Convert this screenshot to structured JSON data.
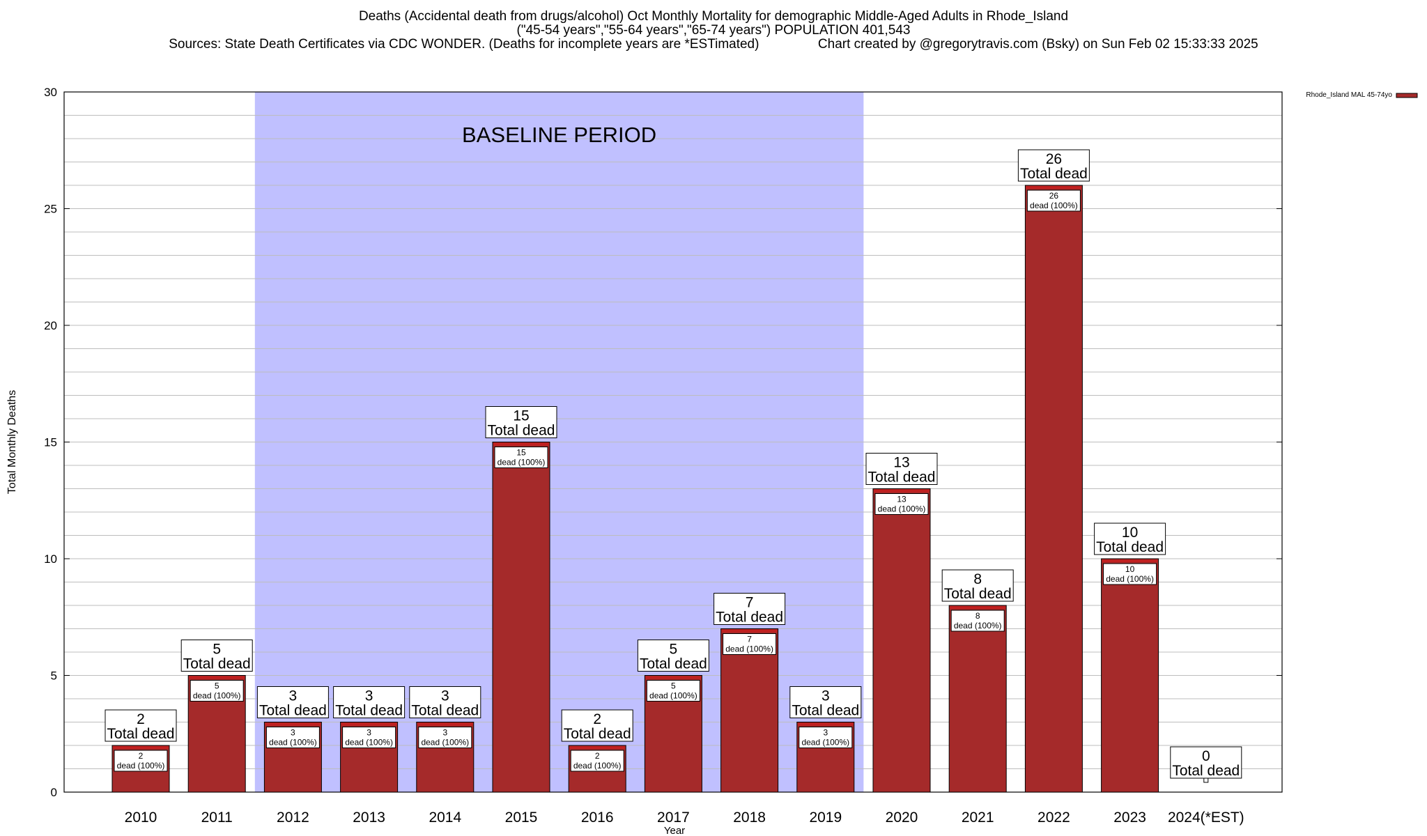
{
  "titles": {
    "line1": "Deaths (Accidental death from drugs/alcohol) Oct Monthly Mortality for demographic Middle-Aged Adults in Rhode_Island",
    "line2": "(\"45-54 years\",\"55-64 years\",\"65-74 years\") POPULATION 401,543",
    "line3": "Sources: State Death Certificates via CDC WONDER. (Deaths for incomplete years are *ESTimated)                Chart created by @gregorytravis.com (Bsky) on Sun Feb 02 15:33:33 2025"
  },
  "chart_data": {
    "type": "bar",
    "title": "Deaths (Accidental death from drugs/alcohol) Oct Monthly Mortality for demographic Middle-Aged Adults in Rhode_Island",
    "xlabel": "Year",
    "ylabel": "Total Monthly Deaths",
    "ylim": [
      0,
      30
    ],
    "yticks": [
      0,
      5,
      10,
      15,
      20,
      25,
      30
    ],
    "grid": true,
    "legend_position": "top-right",
    "colors": {
      "bar": "#a52a2a",
      "baseline_shade": "#c0c0ff",
      "bar_top": "#c02020"
    },
    "categories": [
      "2010",
      "2011",
      "2012",
      "2013",
      "2014",
      "2015",
      "2016",
      "2017",
      "2018",
      "2019",
      "2020",
      "2021",
      "2022",
      "2023",
      "2024(*EST)"
    ],
    "series": [
      {
        "name": "Rhode_Island MAL 45-74yo",
        "values": [
          2,
          5,
          3,
          3,
          3,
          15,
          2,
          5,
          7,
          3,
          13,
          8,
          26,
          10,
          0
        ]
      }
    ],
    "baseline_period": {
      "label": "BASELINE PERIOD",
      "start": "2012",
      "end": "2019"
    },
    "total_label": "Total dead",
    "inner_label": "dead (100%)"
  }
}
